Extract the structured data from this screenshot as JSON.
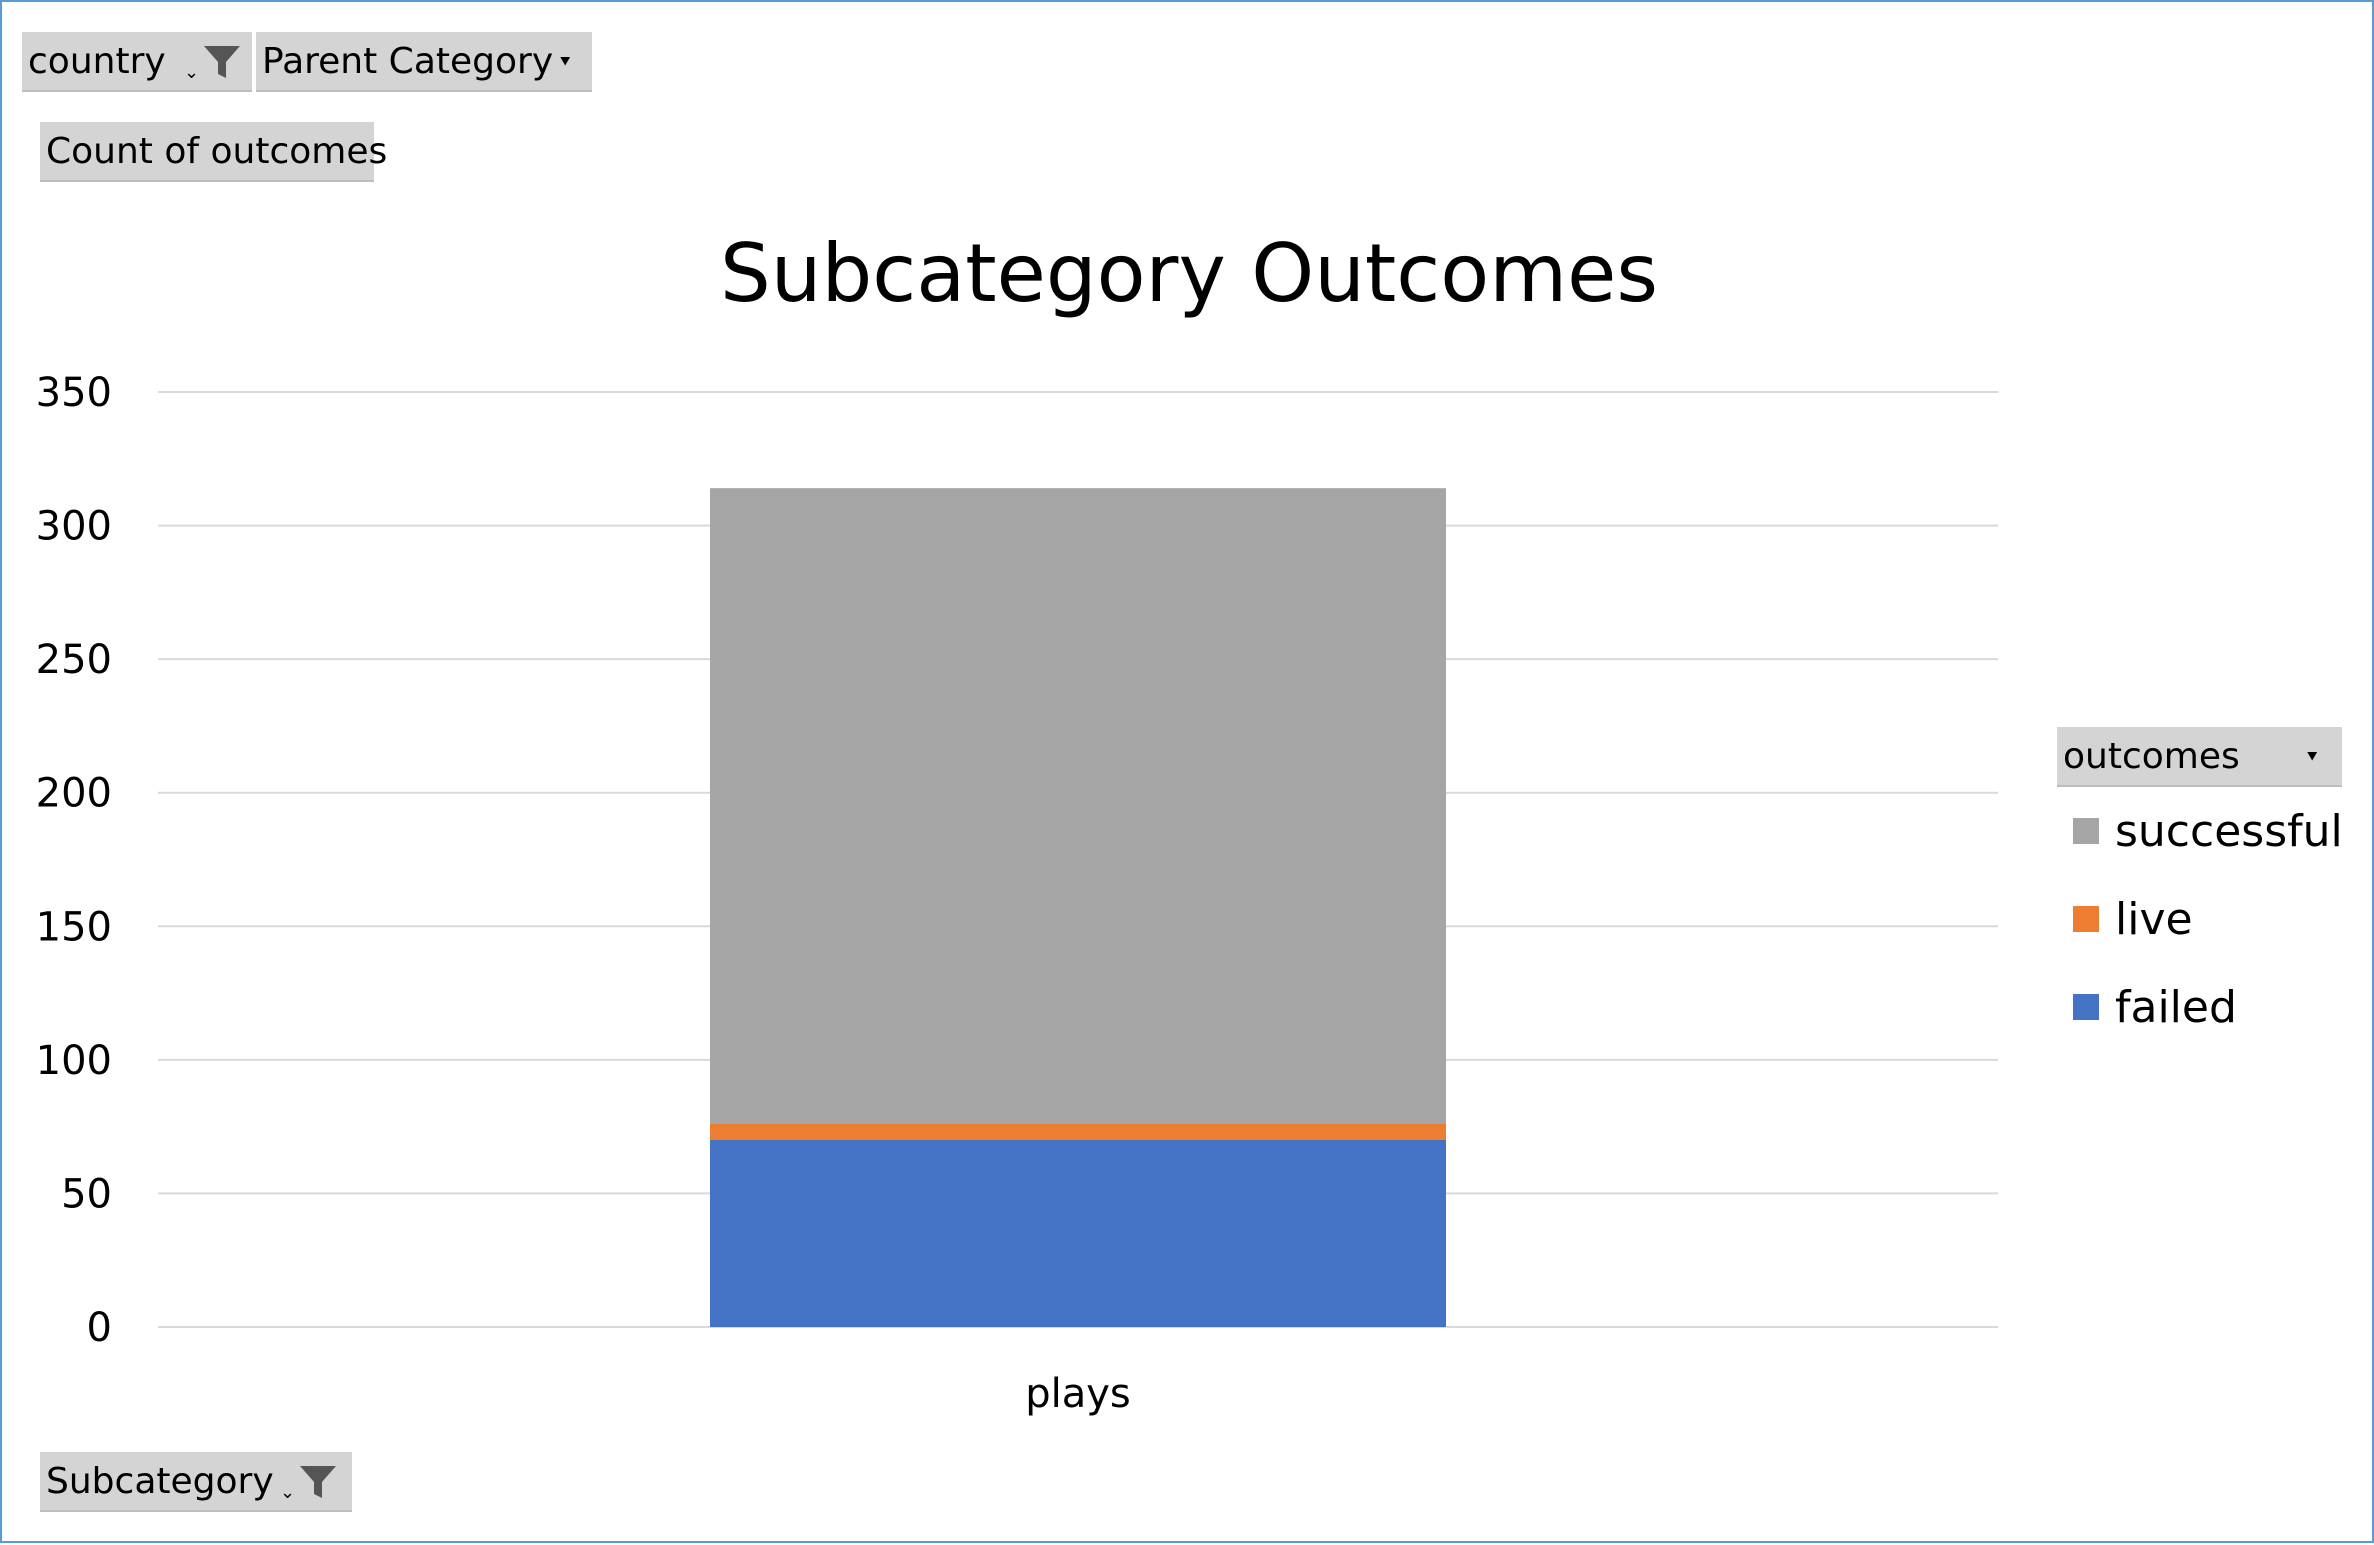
{
  "filters": {
    "country": {
      "label": "country"
    },
    "parent_category": {
      "label": "Parent Category"
    },
    "values": {
      "label": "Count of outcomes"
    },
    "axis_field": {
      "label": "Subcategory"
    }
  },
  "legend": {
    "field_label": "outcomes",
    "items": [
      {
        "name": "successful",
        "color": "#a5a5a5"
      },
      {
        "name": "live",
        "color": "#ed7d31"
      },
      {
        "name": "failed",
        "color": "#4472c4"
      }
    ]
  },
  "chart_data": {
    "type": "bar",
    "stacked": true,
    "title": "Subcategory Outcomes",
    "categories": [
      "plays"
    ],
    "series": [
      {
        "name": "failed",
        "values": [
          70
        ],
        "color": "#4472c4"
      },
      {
        "name": "live",
        "values": [
          6
        ],
        "color": "#ed7d31"
      },
      {
        "name": "successful",
        "values": [
          238
        ],
        "color": "#a5a5a5"
      }
    ],
    "xlabel": "",
    "ylabel": "",
    "ylim": [
      0,
      350
    ],
    "yticks": [
      "0",
      "50",
      "100",
      "150",
      "200",
      "250",
      "300",
      "350"
    ],
    "grid": true,
    "legend_position": "right"
  }
}
